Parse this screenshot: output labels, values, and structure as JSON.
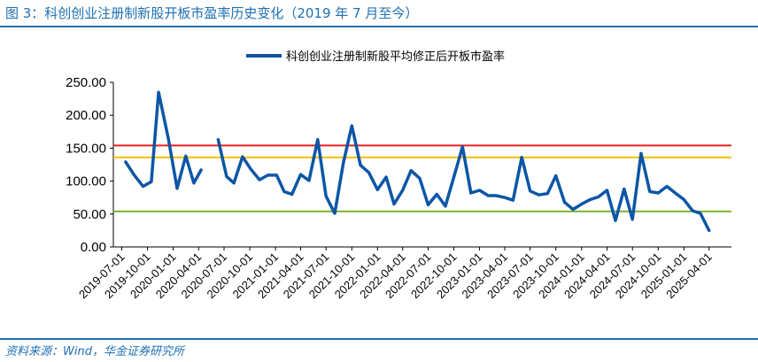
{
  "figure": {
    "title": "图 3：科创创业注册制新股开板市盈率历史变化（2019 年 7 月至今）",
    "source": "资料来源：Wind，华金证券研究所"
  },
  "chart_data": {
    "type": "line",
    "title": "",
    "xlabel": "",
    "ylabel": "",
    "ylim": [
      0,
      250
    ],
    "yticks": [
      "250.00",
      "200.00",
      "150.00",
      "100.00",
      "50.00",
      "0.00"
    ],
    "xlim": [
      "2019-06-01",
      "2025-06-20"
    ],
    "xticks": [
      "2019-07-01",
      "2019-10-01",
      "2020-01-01",
      "2020-04-01",
      "2020-07-01",
      "2020-10-01",
      "2021-01-01",
      "2021-04-01",
      "2021-07-01",
      "2021-10-01",
      "2022-01-01",
      "2022-04-01",
      "2022-07-01",
      "2022-10-01",
      "2023-01-01",
      "2023-04-01",
      "2023-07-01",
      "2023-10-01",
      "2024-01-01",
      "2024-04-01",
      "2024-07-01",
      "2024-10-01",
      "2025-01-01",
      "2025-04-01"
    ],
    "legend_position": "top-center",
    "grid": false,
    "series": [
      {
        "name": "科创创业注册制新股平均修正后开板市盈率",
        "color": "#0d56a6",
        "segments": [
          [
            [
              "2019-07-15",
              129
            ],
            [
              "2019-08-15",
              109
            ],
            [
              "2019-09-15",
              92
            ],
            [
              "2019-10-15",
              99
            ],
            [
              "2019-11-10",
              235
            ],
            [
              "2019-12-15",
              164
            ],
            [
              "2020-01-15",
              89
            ],
            [
              "2020-02-15",
              138
            ],
            [
              "2020-03-15",
              97
            ],
            [
              "2020-04-10",
              117
            ]
          ],
          [
            [
              "2020-06-10",
              163
            ],
            [
              "2020-07-10",
              107
            ],
            [
              "2020-08-05",
              97
            ],
            [
              "2020-09-05",
              137
            ],
            [
              "2020-10-05",
              118
            ],
            [
              "2020-11-05",
              102
            ],
            [
              "2020-12-05",
              109
            ],
            [
              "2021-01-05",
              109
            ],
            [
              "2021-02-01",
              84
            ],
            [
              "2021-03-01",
              80
            ],
            [
              "2021-04-01",
              110
            ],
            [
              "2021-05-01",
              101
            ],
            [
              "2021-06-01",
              163
            ],
            [
              "2021-07-01",
              77
            ],
            [
              "2021-08-01",
              51
            ],
            [
              "2021-09-01",
              128
            ],
            [
              "2021-10-01",
              184
            ],
            [
              "2021-11-01",
              124
            ],
            [
              "2021-12-01",
              113
            ],
            [
              "2022-01-01",
              87
            ],
            [
              "2022-02-01",
              106
            ],
            [
              "2022-03-01",
              65
            ],
            [
              "2022-04-01",
              86
            ],
            [
              "2022-05-01",
              116
            ],
            [
              "2022-06-01",
              104
            ],
            [
              "2022-07-01",
              64
            ],
            [
              "2022-08-01",
              80
            ],
            [
              "2022-09-01",
              62
            ],
            [
              "2022-10-01",
              106
            ],
            [
              "2022-11-01",
              152
            ],
            [
              "2022-12-01",
              82
            ],
            [
              "2023-01-01",
              86
            ],
            [
              "2023-02-01",
              78
            ],
            [
              "2023-03-01",
              78
            ],
            [
              "2023-04-01",
              75
            ],
            [
              "2023-05-01",
              71
            ],
            [
              "2023-06-01",
              136
            ],
            [
              "2023-07-01",
              85
            ],
            [
              "2023-08-01",
              79
            ],
            [
              "2023-09-01",
              81
            ],
            [
              "2023-10-01",
              108
            ],
            [
              "2023-11-01",
              68
            ],
            [
              "2023-12-01",
              57
            ],
            [
              "2024-01-01",
              65
            ],
            [
              "2024-02-01",
              72
            ],
            [
              "2024-03-01",
              76
            ],
            [
              "2024-04-01",
              86
            ],
            [
              "2024-05-01",
              40
            ],
            [
              "2024-06-01",
              88
            ],
            [
              "2024-07-01",
              42
            ],
            [
              "2024-08-01",
              142
            ],
            [
              "2024-09-01",
              84
            ],
            [
              "2024-10-01",
              82
            ],
            [
              "2024-11-01",
              92
            ],
            [
              "2024-12-01",
              82
            ],
            [
              "2025-01-01",
              72
            ],
            [
              "2025-02-01",
              55
            ],
            [
              "2025-03-01",
              51
            ],
            [
              "2025-04-01",
              25
            ]
          ]
        ]
      }
    ],
    "reference_lines": [
      {
        "color": "#e82020",
        "value": 154
      },
      {
        "color": "#f5c000",
        "value": 136
      },
      {
        "color": "#7db33a",
        "value": 54
      }
    ]
  }
}
